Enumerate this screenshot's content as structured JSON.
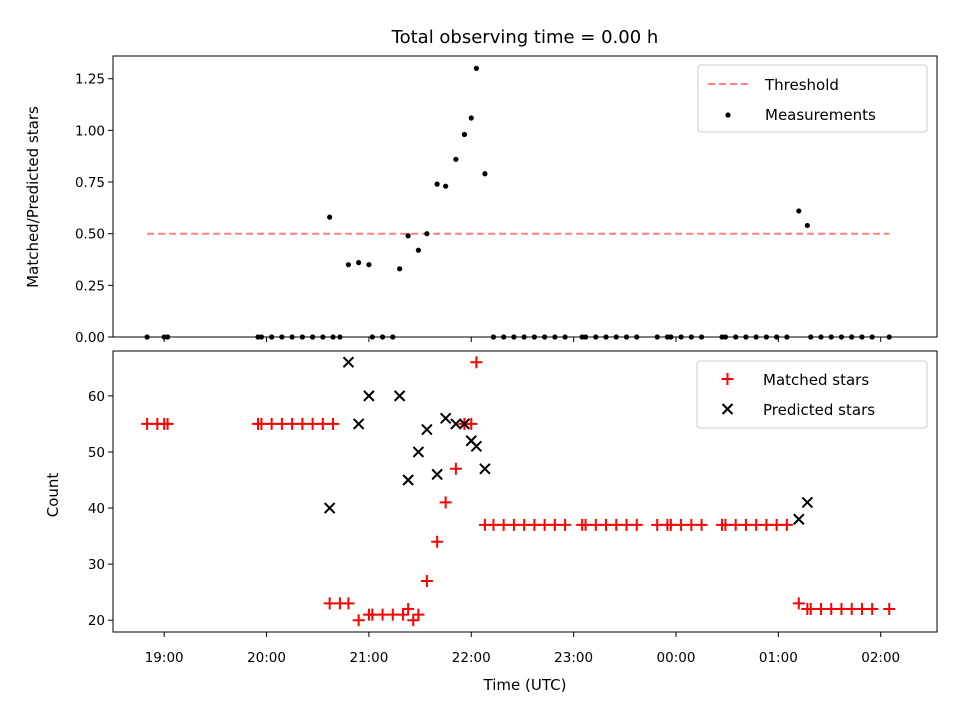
{
  "chart_data": [
    {
      "type": "scatter",
      "title": "Total observing time = 0.00 h",
      "xlabel": "",
      "ylabel": "Matched/Predicted stars",
      "ylim": [
        0,
        1.36
      ],
      "yticks": [
        "0.00",
        "0.25",
        "0.50",
        "0.75",
        "1.00",
        "1.25"
      ],
      "xlim_hours": [
        18.5,
        26.55
      ],
      "legend": "top-right",
      "threshold": {
        "name": "Threshold",
        "y": 0.5,
        "x_from": "18:50",
        "x_to": "02:05",
        "color": "#ff7f7f"
      },
      "series": [
        {
          "name": "Measurements",
          "color": "#000000",
          "points": [
            [
              "18:50",
              0
            ],
            [
              "19:00",
              0
            ],
            [
              "19:02",
              0
            ],
            [
              "19:55",
              0
            ],
            [
              "19:57",
              0
            ],
            [
              "20:03",
              0
            ],
            [
              "20:09",
              0
            ],
            [
              "20:15",
              0
            ],
            [
              "20:21",
              0
            ],
            [
              "20:27",
              0
            ],
            [
              "20:33",
              0
            ],
            [
              "20:39",
              0
            ],
            [
              "20:37",
              0.58
            ],
            [
              "20:43",
              0
            ],
            [
              "20:48",
              0.35
            ],
            [
              "20:54",
              0.36
            ],
            [
              "21:00",
              0.35
            ],
            [
              "21:02",
              0
            ],
            [
              "21:08",
              0
            ],
            [
              "21:14",
              0
            ],
            [
              "21:18",
              0.33
            ],
            [
              "21:23",
              0.49
            ],
            [
              "21:29",
              0.42
            ],
            [
              "21:34",
              0.5
            ],
            [
              "21:40",
              0.74
            ],
            [
              "21:45",
              0.73
            ],
            [
              "21:51",
              0.86
            ],
            [
              "21:56",
              0.98
            ],
            [
              "22:00",
              1.06
            ],
            [
              "22:03",
              1.3
            ],
            [
              "22:08",
              0.79
            ],
            [
              "22:13",
              0
            ],
            [
              "22:19",
              0
            ],
            [
              "22:25",
              0
            ],
            [
              "22:31",
              0
            ],
            [
              "22:37",
              0
            ],
            [
              "22:43",
              0
            ],
            [
              "22:49",
              0
            ],
            [
              "22:55",
              0
            ],
            [
              "23:05",
              0
            ],
            [
              "23:07",
              0
            ],
            [
              "23:13",
              0
            ],
            [
              "23:19",
              0
            ],
            [
              "23:25",
              0
            ],
            [
              "23:31",
              0
            ],
            [
              "23:37",
              0
            ],
            [
              "23:49",
              0
            ],
            [
              "23:55",
              0
            ],
            [
              "23:57",
              0
            ],
            [
              "00:03",
              0
            ],
            [
              "00:09",
              0
            ],
            [
              "00:15",
              0
            ],
            [
              "00:27",
              0
            ],
            [
              "00:29",
              0
            ],
            [
              "00:35",
              0
            ],
            [
              "00:41",
              0
            ],
            [
              "00:47",
              0
            ],
            [
              "00:53",
              0
            ],
            [
              "00:59",
              0
            ],
            [
              "01:05",
              0
            ],
            [
              "01:12",
              0.61
            ],
            [
              "01:17",
              0.54
            ],
            [
              "01:19",
              0
            ],
            [
              "01:25",
              0
            ],
            [
              "01:31",
              0
            ],
            [
              "01:37",
              0
            ],
            [
              "01:43",
              0
            ],
            [
              "01:49",
              0
            ],
            [
              "01:55",
              0
            ],
            [
              "02:05",
              0
            ]
          ]
        }
      ]
    },
    {
      "type": "scatter",
      "title": "",
      "xlabel": "Time (UTC)",
      "ylabel": "Count",
      "ylim": [
        17.9,
        68
      ],
      "yticks": [
        "20",
        "30",
        "40",
        "50",
        "60"
      ],
      "xticks": [
        "19:00",
        "20:00",
        "21:00",
        "22:00",
        "23:00",
        "00:00",
        "01:00",
        "02:00"
      ],
      "xlim_hours": [
        18.5,
        26.55
      ],
      "legend": "top-right",
      "series": [
        {
          "name": "Matched stars",
          "marker": "plus",
          "color": "#ff0000",
          "points": [
            [
              "18:50",
              55
            ],
            [
              "18:56",
              55
            ],
            [
              "19:00",
              55
            ],
            [
              "19:02",
              55
            ],
            [
              "19:55",
              55
            ],
            [
              "19:57",
              55
            ],
            [
              "20:03",
              55
            ],
            [
              "20:09",
              55
            ],
            [
              "20:15",
              55
            ],
            [
              "20:21",
              55
            ],
            [
              "20:27",
              55
            ],
            [
              "20:33",
              55
            ],
            [
              "20:39",
              55
            ],
            [
              "20:37",
              23
            ],
            [
              "20:43",
              23
            ],
            [
              "20:48",
              23
            ],
            [
              "20:54",
              20
            ],
            [
              "21:00",
              21
            ],
            [
              "21:02",
              21
            ],
            [
              "21:08",
              21
            ],
            [
              "21:14",
              21
            ],
            [
              "21:20",
              21
            ],
            [
              "21:26",
              20
            ],
            [
              "21:23",
              22
            ],
            [
              "21:29",
              21
            ],
            [
              "21:34",
              27
            ],
            [
              "21:40",
              34
            ],
            [
              "21:45",
              41
            ],
            [
              "21:51",
              47
            ],
            [
              "21:56",
              55
            ],
            [
              "22:00",
              55
            ],
            [
              "22:03",
              66
            ],
            [
              "22:08",
              37
            ],
            [
              "22:13",
              37
            ],
            [
              "22:19",
              37
            ],
            [
              "22:25",
              37
            ],
            [
              "22:31",
              37
            ],
            [
              "22:37",
              37
            ],
            [
              "22:43",
              37
            ],
            [
              "22:49",
              37
            ],
            [
              "22:55",
              37
            ],
            [
              "23:05",
              37
            ],
            [
              "23:07",
              37
            ],
            [
              "23:13",
              37
            ],
            [
              "23:19",
              37
            ],
            [
              "23:25",
              37
            ],
            [
              "23:31",
              37
            ],
            [
              "23:37",
              37
            ],
            [
              "23:49",
              37
            ],
            [
              "23:55",
              37
            ],
            [
              "23:57",
              37
            ],
            [
              "00:03",
              37
            ],
            [
              "00:09",
              37
            ],
            [
              "00:15",
              37
            ],
            [
              "00:27",
              37
            ],
            [
              "00:29",
              37
            ],
            [
              "00:35",
              37
            ],
            [
              "00:41",
              37
            ],
            [
              "00:47",
              37
            ],
            [
              "00:53",
              37
            ],
            [
              "00:59",
              37
            ],
            [
              "01:05",
              37
            ],
            [
              "01:12",
              23
            ],
            [
              "01:17",
              22
            ],
            [
              "01:19",
              22
            ],
            [
              "01:25",
              22
            ],
            [
              "01:31",
              22
            ],
            [
              "01:37",
              22
            ],
            [
              "01:43",
              22
            ],
            [
              "01:49",
              22
            ],
            [
              "01:55",
              22
            ],
            [
              "02:05",
              22
            ]
          ]
        },
        {
          "name": "Predicted stars",
          "marker": "x",
          "color": "#000000",
          "points": [
            [
              "20:37",
              40
            ],
            [
              "20:48",
              66
            ],
            [
              "20:54",
              55
            ],
            [
              "21:00",
              60
            ],
            [
              "21:18",
              60
            ],
            [
              "21:23",
              45
            ],
            [
              "21:29",
              50
            ],
            [
              "21:34",
              54
            ],
            [
              "21:40",
              46
            ],
            [
              "21:45",
              56
            ],
            [
              "21:51",
              55
            ],
            [
              "21:56",
              55
            ],
            [
              "22:00",
              52
            ],
            [
              "22:03",
              51
            ],
            [
              "22:08",
              47
            ],
            [
              "01:12",
              38
            ],
            [
              "01:17",
              41
            ]
          ]
        }
      ]
    }
  ]
}
